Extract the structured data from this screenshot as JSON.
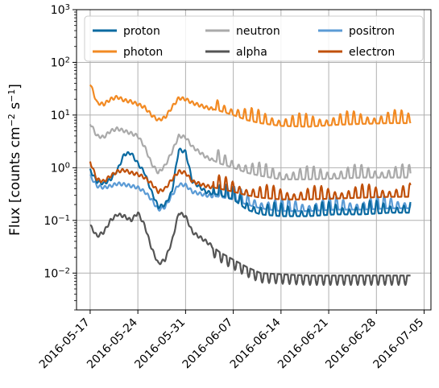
{
  "chart_data": {
    "type": "line",
    "title": "",
    "xlabel": "",
    "ylabel_main": "Flux [counts cm",
    "ylabel_exp1": "−2",
    "ylabel_mid": " s",
    "ylabel_exp2": "−1",
    "ylabel_end": "]",
    "y_scale": "log",
    "ylim": [
      0.002,
      1000
    ],
    "xlim": [
      "2016-05-15",
      "2016-07-06"
    ],
    "grid": true,
    "legend_position": "top",
    "x_ticks": [
      "2016-05-17",
      "2016-05-24",
      "2016-05-31",
      "2016-06-07",
      "2016-06-14",
      "2016-06-21",
      "2016-06-28",
      "2016-07-05"
    ],
    "y_ticks": [
      {
        "value": 0.01,
        "base": "10",
        "exp": "−2"
      },
      {
        "value": 0.1,
        "base": "10",
        "exp": "−1"
      },
      {
        "value": 1,
        "base": "10",
        "exp": "0"
      },
      {
        "value": 10,
        "base": "10",
        "exp": "1"
      },
      {
        "value": 100,
        "base": "10",
        "exp": "2"
      },
      {
        "value": 1000,
        "base": "10",
        "exp": "3"
      }
    ],
    "series": [
      {
        "name": "proton",
        "color": "#0a6aa1",
        "points": [
          [
            "2016-05-17",
            0.9
          ],
          [
            "2016-05-18",
            0.55
          ],
          [
            "2016-05-19",
            0.5
          ],
          [
            "2016-05-20",
            0.6
          ],
          [
            "2016-05-21",
            0.9
          ],
          [
            "2016-05-22",
            1.8
          ],
          [
            "2016-05-23",
            1.9
          ],
          [
            "2016-05-24",
            1.2
          ],
          [
            "2016-05-25",
            0.8
          ],
          [
            "2016-05-26",
            0.35
          ],
          [
            "2016-05-27",
            0.18
          ],
          [
            "2016-05-28",
            0.2
          ],
          [
            "2016-05-29",
            0.35
          ],
          [
            "2016-05-30",
            2.2
          ],
          [
            "2016-05-31",
            2.0
          ],
          [
            "2016-06-01",
            0.55
          ],
          [
            "2016-06-03",
            0.35
          ],
          [
            "2016-06-05",
            0.3
          ],
          [
            "2016-06-07",
            0.25
          ],
          [
            "2016-06-09",
            0.16
          ],
          [
            "2016-06-11",
            0.13
          ],
          [
            "2016-06-14",
            0.12
          ],
          [
            "2016-06-18",
            0.12
          ],
          [
            "2016-06-22",
            0.13
          ],
          [
            "2016-06-26",
            0.13
          ],
          [
            "2016-06-30",
            0.14
          ],
          [
            "2016-07-03",
            0.14
          ]
        ]
      },
      {
        "name": "photon",
        "color": "#f28a23",
        "points": [
          [
            "2016-05-17",
            40
          ],
          [
            "2016-05-18",
            17
          ],
          [
            "2016-05-19",
            16
          ],
          [
            "2016-05-20",
            20
          ],
          [
            "2016-05-21",
            22
          ],
          [
            "2016-05-22",
            19
          ],
          [
            "2016-05-23",
            18
          ],
          [
            "2016-05-24",
            16
          ],
          [
            "2016-05-25",
            14
          ],
          [
            "2016-05-26",
            10
          ],
          [
            "2016-05-27",
            8
          ],
          [
            "2016-05-28",
            9
          ],
          [
            "2016-05-29",
            14
          ],
          [
            "2016-05-30",
            21
          ],
          [
            "2016-05-31",
            20
          ],
          [
            "2016-06-01",
            17
          ],
          [
            "2016-06-03",
            14
          ],
          [
            "2016-06-05",
            12
          ],
          [
            "2016-06-07",
            10
          ],
          [
            "2016-06-09",
            8
          ],
          [
            "2016-06-11",
            7
          ],
          [
            "2016-06-14",
            6.2
          ],
          [
            "2016-06-18",
            6
          ],
          [
            "2016-06-22",
            6.5
          ],
          [
            "2016-06-26",
            6.8
          ],
          [
            "2016-06-30",
            7
          ],
          [
            "2016-07-03",
            7
          ]
        ]
      },
      {
        "name": "neutron",
        "color": "#aaaaaa",
        "points": [
          [
            "2016-05-17",
            7
          ],
          [
            "2016-05-18",
            4
          ],
          [
            "2016-05-19",
            3.8
          ],
          [
            "2016-05-20",
            5
          ],
          [
            "2016-05-21",
            5.5
          ],
          [
            "2016-05-22",
            5
          ],
          [
            "2016-05-23",
            4.5
          ],
          [
            "2016-05-24",
            4
          ],
          [
            "2016-05-25",
            2.5
          ],
          [
            "2016-05-26",
            1.2
          ],
          [
            "2016-05-27",
            0.8
          ],
          [
            "2016-05-28",
            1.1
          ],
          [
            "2016-05-29",
            2
          ],
          [
            "2016-05-30",
            4
          ],
          [
            "2016-05-31",
            3.8
          ],
          [
            "2016-06-01",
            2.5
          ],
          [
            "2016-06-03",
            1.6
          ],
          [
            "2016-06-05",
            1.2
          ],
          [
            "2016-06-07",
            1.0
          ],
          [
            "2016-06-09",
            0.8
          ],
          [
            "2016-06-11",
            0.7
          ],
          [
            "2016-06-14",
            0.6
          ],
          [
            "2016-06-18",
            0.6
          ],
          [
            "2016-06-22",
            0.62
          ],
          [
            "2016-06-26",
            0.65
          ],
          [
            "2016-06-30",
            0.65
          ],
          [
            "2016-07-03",
            0.65
          ]
        ]
      },
      {
        "name": "alpha",
        "color": "#555555",
        "points": [
          [
            "2016-05-17",
            0.08
          ],
          [
            "2016-05-18",
            0.05
          ],
          [
            "2016-05-19",
            0.06
          ],
          [
            "2016-05-20",
            0.1
          ],
          [
            "2016-05-21",
            0.13
          ],
          [
            "2016-05-22",
            0.12
          ],
          [
            "2016-05-23",
            0.1
          ],
          [
            "2016-05-24",
            0.14
          ],
          [
            "2016-05-25",
            0.08
          ],
          [
            "2016-05-26",
            0.03
          ],
          [
            "2016-05-27",
            0.015
          ],
          [
            "2016-05-28",
            0.018
          ],
          [
            "2016-05-29",
            0.04
          ],
          [
            "2016-05-30",
            0.14
          ],
          [
            "2016-05-31",
            0.12
          ],
          [
            "2016-06-01",
            0.06
          ],
          [
            "2016-06-03",
            0.04
          ],
          [
            "2016-06-05",
            0.025
          ],
          [
            "2016-06-07",
            0.018
          ],
          [
            "2016-06-09",
            0.013
          ],
          [
            "2016-06-11",
            0.01
          ],
          [
            "2016-06-14",
            0.0095
          ],
          [
            "2016-06-18",
            0.009
          ],
          [
            "2016-06-22",
            0.009
          ],
          [
            "2016-06-26",
            0.009
          ],
          [
            "2016-06-30",
            0.009
          ],
          [
            "2016-07-03",
            0.009
          ]
        ]
      },
      {
        "name": "positron",
        "color": "#5b9bd5",
        "points": [
          [
            "2016-05-17",
            0.7
          ],
          [
            "2016-05-18",
            0.45
          ],
          [
            "2016-05-19",
            0.42
          ],
          [
            "2016-05-20",
            0.45
          ],
          [
            "2016-05-21",
            0.5
          ],
          [
            "2016-05-22",
            0.48
          ],
          [
            "2016-05-23",
            0.45
          ],
          [
            "2016-05-24",
            0.42
          ],
          [
            "2016-05-25",
            0.35
          ],
          [
            "2016-05-26",
            0.25
          ],
          [
            "2016-05-27",
            0.16
          ],
          [
            "2016-05-28",
            0.18
          ],
          [
            "2016-05-29",
            0.3
          ],
          [
            "2016-05-30",
            0.48
          ],
          [
            "2016-05-31",
            0.47
          ],
          [
            "2016-06-01",
            0.35
          ],
          [
            "2016-06-03",
            0.3
          ],
          [
            "2016-06-05",
            0.28
          ],
          [
            "2016-06-07",
            0.25
          ],
          [
            "2016-06-09",
            0.2
          ],
          [
            "2016-06-11",
            0.17
          ],
          [
            "2016-06-14",
            0.15
          ],
          [
            "2016-06-18",
            0.15
          ],
          [
            "2016-06-22",
            0.16
          ],
          [
            "2016-06-26",
            0.16
          ],
          [
            "2016-06-30",
            0.17
          ],
          [
            "2016-07-03",
            0.17
          ]
        ]
      },
      {
        "name": "electron",
        "color": "#c0500a",
        "points": [
          [
            "2016-05-17",
            1.3
          ],
          [
            "2016-05-18",
            0.6
          ],
          [
            "2016-05-19",
            0.55
          ],
          [
            "2016-05-20",
            0.7
          ],
          [
            "2016-05-21",
            0.85
          ],
          [
            "2016-05-22",
            0.9
          ],
          [
            "2016-05-23",
            0.8
          ],
          [
            "2016-05-24",
            0.75
          ],
          [
            "2016-05-25",
            0.65
          ],
          [
            "2016-05-26",
            0.5
          ],
          [
            "2016-05-27",
            0.35
          ],
          [
            "2016-05-28",
            0.4
          ],
          [
            "2016-05-29",
            0.6
          ],
          [
            "2016-05-30",
            0.85
          ],
          [
            "2016-05-31",
            0.8
          ],
          [
            "2016-06-01",
            0.55
          ],
          [
            "2016-06-03",
            0.45
          ],
          [
            "2016-06-05",
            0.4
          ],
          [
            "2016-06-07",
            0.35
          ],
          [
            "2016-06-09",
            0.3
          ],
          [
            "2016-06-11",
            0.27
          ],
          [
            "2016-06-14",
            0.25
          ],
          [
            "2016-06-18",
            0.25
          ],
          [
            "2016-06-22",
            0.26
          ],
          [
            "2016-06-26",
            0.27
          ],
          [
            "2016-06-30",
            0.28
          ],
          [
            "2016-07-03",
            0.28
          ]
        ]
      }
    ],
    "legend_layout": [
      [
        "proton",
        "neutron",
        "positron"
      ],
      [
        "photon",
        "alpha",
        "electron"
      ]
    ]
  }
}
